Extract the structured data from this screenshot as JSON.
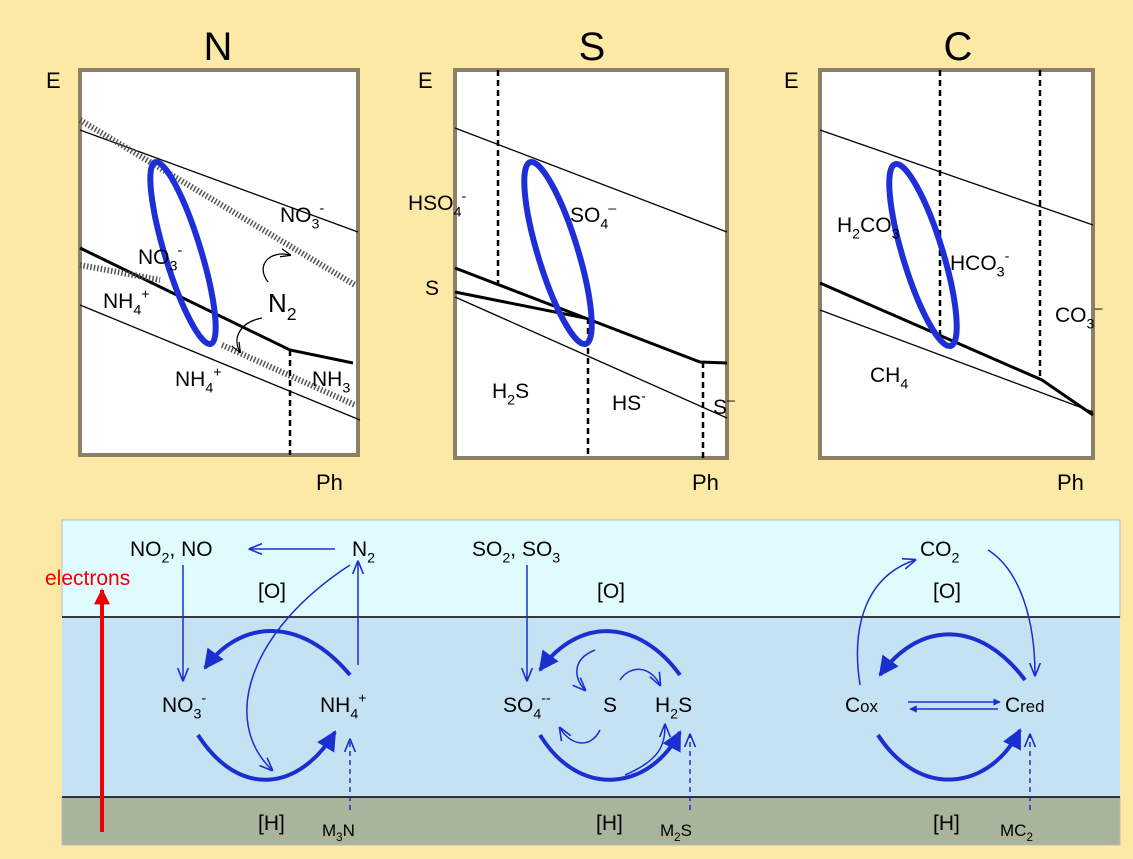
{
  "panels": [
    {
      "title": "N",
      "y_axis": "E",
      "x_axis": "Ph",
      "labels": [
        [
          {
            "t": "NO"
          },
          {
            "sub": "3"
          },
          {
            "sup": "-"
          }
        ],
        [
          {
            "t": "NO"
          },
          {
            "sub": "3"
          },
          {
            "sup": "-"
          }
        ],
        [
          {
            "t": "NH"
          },
          {
            "sub": "4"
          },
          {
            "sup": "+"
          }
        ],
        [
          {
            "t": "N"
          },
          {
            "sub": "2"
          }
        ],
        [
          {
            "t": "NH"
          },
          {
            "sub": "4"
          },
          {
            "sup": "+"
          }
        ],
        [
          {
            "t": "NH"
          },
          {
            "sub": "3"
          }
        ]
      ]
    },
    {
      "title": "S",
      "y_axis": "E",
      "x_axis": "Ph",
      "labels": [
        [
          {
            "t": "HSO"
          },
          {
            "sub": "4"
          },
          {
            "sup": "-"
          }
        ],
        [
          {
            "t": "SO"
          },
          {
            "sub": "4"
          },
          {
            "sup": "–"
          }
        ],
        [
          {
            "t": "S"
          }
        ],
        [
          {
            "t": "H"
          },
          {
            "sub": "2"
          },
          {
            "t": "S"
          }
        ],
        [
          {
            "t": "HS"
          },
          {
            "sup": "-"
          }
        ],
        [
          {
            "t": "S"
          },
          {
            "sup": "–"
          }
        ]
      ]
    },
    {
      "title": "C",
      "y_axis": "E",
      "x_axis": "Ph",
      "labels": [
        [
          {
            "t": "H"
          },
          {
            "sub": "2"
          },
          {
            "t": "CO"
          },
          {
            "sub": "3"
          }
        ],
        [
          {
            "t": "HCO"
          },
          {
            "sub": "3"
          },
          {
            "sup": "-"
          }
        ],
        [
          {
            "t": "CO"
          },
          {
            "sub": "3"
          },
          {
            "sup": "–"
          }
        ],
        [
          {
            "t": "CH"
          },
          {
            "sub": "4"
          }
        ]
      ]
    }
  ],
  "electrons": "electrons",
  "cycles": [
    {
      "labels": [
        [
          {
            "t": "NO"
          },
          {
            "sub": "2"
          },
          {
            "t": ", NO"
          }
        ],
        [
          {
            "t": "N"
          },
          {
            "sub": "2"
          }
        ],
        [
          {
            "t": "[O]"
          }
        ],
        [
          {
            "t": "NO"
          },
          {
            "sub": "3"
          },
          {
            "sup": "-"
          }
        ],
        [
          {
            "t": "NH"
          },
          {
            "sub": "4"
          },
          {
            "sup": "+"
          }
        ],
        [
          {
            "t": "[H]"
          }
        ],
        [
          {
            "t": "M"
          },
          {
            "sub": "3"
          },
          {
            "t": "N"
          }
        ]
      ]
    },
    {
      "labels": [
        [
          {
            "t": "SO"
          },
          {
            "sub": "2"
          },
          {
            "t": ", SO"
          },
          {
            "sub": "3"
          }
        ],
        [
          {
            "t": "[O]"
          }
        ],
        [
          {
            "t": "SO"
          },
          {
            "sub": "4"
          },
          {
            "sup": "--"
          }
        ],
        [
          {
            "t": "S"
          }
        ],
        [
          {
            "t": "H"
          },
          {
            "sub": "2"
          },
          {
            "t": "S"
          }
        ],
        [
          {
            "t": "[H]"
          }
        ],
        [
          {
            "t": "M"
          },
          {
            "sub": "2"
          },
          {
            "t": "S"
          }
        ]
      ]
    },
    {
      "labels": [
        [
          {
            "t": "CO"
          },
          {
            "sub": "2"
          }
        ],
        [
          {
            "t": "[O]"
          }
        ],
        [
          {
            "t": "C"
          },
          {
            "small": "ox"
          }
        ],
        [
          {
            "t": "C"
          },
          {
            "small": "red"
          }
        ],
        [
          {
            "t": "[H]"
          }
        ],
        [
          {
            "t": "MC"
          },
          {
            "sub": "2"
          }
        ]
      ]
    }
  ]
}
